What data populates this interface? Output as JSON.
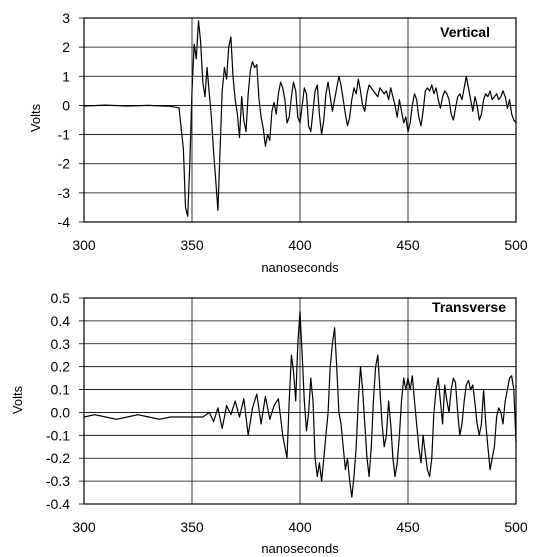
{
  "chart_data": [
    {
      "type": "line",
      "title": "Vertical",
      "xlabel": "nanoseconds",
      "ylabel": "Volts",
      "xlim": [
        300,
        500
      ],
      "ylim": [
        -4,
        3
      ],
      "xticks": [
        300,
        350,
        400,
        450,
        500
      ],
      "yticks": [
        -4,
        -3,
        -2,
        -1,
        0,
        1,
        2,
        3
      ],
      "xgrid": [
        300,
        350,
        400,
        450,
        500
      ],
      "ygrid": [
        -4,
        -3,
        -2,
        -1,
        0,
        1,
        2,
        3
      ],
      "legend": "none",
      "series": [
        {
          "x": [
            300,
            310,
            320,
            330,
            340,
            344,
            346,
            347,
            348,
            349,
            350,
            351,
            352,
            353,
            354,
            355,
            356,
            357,
            358,
            359,
            360,
            361,
            362,
            363,
            364,
            365,
            366,
            367,
            368,
            369,
            370,
            371,
            372,
            373,
            374,
            375,
            376,
            377,
            378,
            379,
            380,
            381,
            382,
            383,
            384,
            385,
            386,
            387,
            388,
            389,
            390,
            391,
            392,
            393,
            394,
            395,
            396,
            397,
            398,
            399,
            400,
            401,
            402,
            403,
            404,
            405,
            406,
            407,
            408,
            409,
            410,
            411,
            412,
            413,
            414,
            415,
            416,
            417,
            418,
            419,
            420,
            421,
            422,
            423,
            424,
            425,
            426,
            427,
            428,
            429,
            430,
            431,
            432,
            433,
            434,
            435,
            436,
            437,
            438,
            439,
            440,
            441,
            442,
            443,
            444,
            445,
            446,
            447,
            448,
            449,
            450,
            451,
            452,
            453,
            454,
            455,
            456,
            457,
            458,
            459,
            460,
            461,
            462,
            463,
            464,
            465,
            466,
            467,
            468,
            469,
            470,
            471,
            472,
            473,
            474,
            475,
            476,
            477,
            478,
            479,
            480,
            481,
            482,
            483,
            484,
            485,
            486,
            487,
            488,
            489,
            490,
            491,
            492,
            493,
            494,
            495,
            496,
            497,
            498,
            499,
            500
          ],
          "y": [
            -0.02,
            0.01,
            -0.02,
            0.0,
            -0.03,
            -0.08,
            -1.5,
            -3.5,
            -3.8,
            -2.0,
            0.5,
            2.1,
            1.6,
            2.9,
            2.2,
            0.8,
            0.3,
            1.3,
            0.4,
            -0.4,
            -1.6,
            -2.6,
            -3.6,
            -1.5,
            0.5,
            1.3,
            0.9,
            2.0,
            2.35,
            1.0,
            0.2,
            -0.3,
            -1.1,
            0.3,
            -0.5,
            -0.9,
            0.4,
            1.2,
            1.5,
            1.3,
            1.4,
            0.2,
            -0.4,
            -0.8,
            -1.4,
            -1.0,
            -1.2,
            -0.2,
            0.1,
            -0.3,
            0.4,
            0.8,
            0.6,
            0.2,
            -0.6,
            -0.4,
            0.3,
            0.8,
            0.5,
            -0.4,
            -0.6,
            0.0,
            0.6,
            0.4,
            -0.7,
            -0.9,
            -0.2,
            0.5,
            0.7,
            -0.3,
            -1.0,
            -0.5,
            0.4,
            0.8,
            0.3,
            -0.2,
            0.2,
            0.6,
            1.0,
            0.7,
            0.2,
            -0.3,
            -0.7,
            -0.4,
            0.2,
            0.6,
            0.4,
            0.9,
            0.5,
            0.0,
            -0.2,
            0.4,
            0.7,
            0.6,
            0.5,
            0.4,
            0.3,
            0.6,
            0.5,
            0.4,
            0.5,
            0.2,
            0.6,
            0.3,
            0.0,
            -0.4,
            0.2,
            -0.2,
            -0.6,
            -0.4,
            -0.9,
            -0.6,
            0.0,
            0.4,
            0.2,
            -0.4,
            -0.7,
            -0.2,
            0.5,
            0.6,
            0.5,
            0.7,
            0.4,
            0.6,
            0.2,
            -0.1,
            0.3,
            0.5,
            0.4,
            0.2,
            -0.3,
            -0.5,
            -0.1,
            0.3,
            0.4,
            0.2,
            0.6,
            1.0,
            0.6,
            0.2,
            -0.2,
            0.3,
            0.0,
            -0.5,
            -0.3,
            0.2,
            0.4,
            0.3,
            0.5,
            0.2,
            0.3,
            0.4,
            0.2,
            0.3,
            0.5,
            0.3,
            -0.1,
            0.2,
            -0.3,
            -0.5,
            -0.6
          ]
        }
      ]
    },
    {
      "type": "line",
      "title": "Transverse",
      "xlabel": "nanoseconds",
      "ylabel": "Volts",
      "xlim": [
        300,
        500
      ],
      "ylim": [
        -0.4,
        0.5
      ],
      "xticks": [
        300,
        350,
        400,
        450,
        500
      ],
      "yticks": [
        -0.4,
        -0.3,
        -0.2,
        -0.1,
        0.0,
        0.1,
        0.2,
        0.3,
        0.4,
        0.5
      ],
      "xgrid": [
        350,
        400,
        450
      ],
      "ygrid": [
        -0.3,
        -0.2,
        -0.1,
        0.0,
        0.1,
        0.2,
        0.3,
        0.4
      ],
      "legend": "none",
      "series": [
        {
          "x": [
            300,
            305,
            310,
            315,
            320,
            325,
            330,
            335,
            340,
            345,
            350,
            355,
            358,
            360,
            362,
            364,
            366,
            368,
            370,
            372,
            374,
            376,
            378,
            380,
            382,
            384,
            386,
            388,
            390,
            392,
            394,
            395,
            396,
            397,
            398,
            399,
            400,
            401,
            402,
            403,
            404,
            405,
            406,
            407,
            408,
            409,
            410,
            411,
            412,
            413,
            414,
            415,
            416,
            417,
            418,
            419,
            420,
            421,
            422,
            423,
            424,
            425,
            426,
            427,
            428,
            429,
            430,
            431,
            432,
            433,
            434,
            435,
            436,
            437,
            438,
            439,
            440,
            441,
            442,
            443,
            444,
            445,
            446,
            447,
            448,
            449,
            450,
            451,
            452,
            453,
            454,
            455,
            456,
            457,
            458,
            459,
            460,
            461,
            462,
            463,
            464,
            465,
            466,
            467,
            468,
            469,
            470,
            471,
            472,
            473,
            474,
            475,
            476,
            477,
            478,
            479,
            480,
            481,
            482,
            483,
            484,
            485,
            486,
            487,
            488,
            489,
            490,
            491,
            492,
            493,
            494,
            495,
            496,
            497,
            498,
            499,
            500
          ],
          "y": [
            -0.02,
            -0.01,
            -0.02,
            -0.03,
            -0.02,
            -0.01,
            -0.02,
            -0.03,
            -0.02,
            -0.02,
            -0.02,
            -0.02,
            0.0,
            -0.04,
            0.02,
            -0.07,
            0.03,
            -0.01,
            0.05,
            -0.02,
            0.06,
            -0.1,
            0.02,
            0.08,
            -0.05,
            0.07,
            -0.03,
            0.03,
            0.06,
            -0.1,
            -0.2,
            0.05,
            0.25,
            0.18,
            0.05,
            0.3,
            0.44,
            0.25,
            0.05,
            -0.08,
            0.0,
            0.15,
            0.05,
            -0.2,
            -0.28,
            -0.22,
            -0.3,
            -0.2,
            -0.1,
            0.0,
            0.2,
            0.3,
            0.37,
            0.2,
            0.0,
            -0.05,
            -0.15,
            -0.25,
            -0.2,
            -0.3,
            -0.37,
            -0.28,
            -0.15,
            0.05,
            0.2,
            0.1,
            -0.05,
            -0.2,
            -0.28,
            -0.15,
            0.05,
            0.2,
            0.25,
            0.1,
            -0.05,
            -0.15,
            -0.1,
            0.05,
            -0.05,
            -0.2,
            -0.28,
            -0.22,
            -0.1,
            0.05,
            0.15,
            0.1,
            0.15,
            0.1,
            0.16,
            0.05,
            -0.05,
            -0.15,
            -0.22,
            -0.1,
            -0.18,
            -0.25,
            -0.28,
            -0.2,
            0.0,
            0.1,
            0.15,
            0.05,
            -0.05,
            0.12,
            0.05,
            0.0,
            0.1,
            0.15,
            0.13,
            0.0,
            -0.1,
            -0.05,
            0.05,
            0.12,
            0.14,
            0.1,
            0.12,
            0.04,
            -0.05,
            -0.1,
            -0.05,
            0.1,
            -0.05,
            -0.15,
            -0.25,
            -0.2,
            -0.15,
            -0.02,
            0.02,
            0.0,
            -0.05,
            0.05,
            0.1,
            0.15,
            0.16,
            0.1,
            -0.13
          ]
        }
      ]
    }
  ]
}
